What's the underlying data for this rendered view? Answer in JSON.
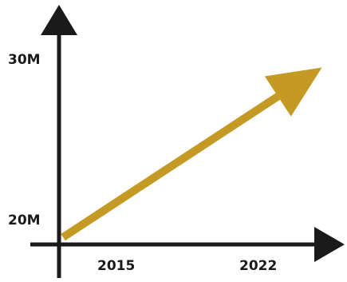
{
  "chart_data": {
    "type": "line",
    "x_ticks": [
      "2015",
      "2022"
    ],
    "y_ticks": [
      "20M",
      "30M"
    ],
    "series": [
      {
        "x": [
          2013.8,
          2023.5
        ],
        "y": [
          20,
          29.2
        ]
      }
    ],
    "xlim": [
      2013.5,
      2024.5
    ],
    "ylim": [
      20,
      30
    ],
    "grid": false,
    "colors": {
      "line": "#c49a25",
      "axis": "#1a1a1a"
    }
  }
}
